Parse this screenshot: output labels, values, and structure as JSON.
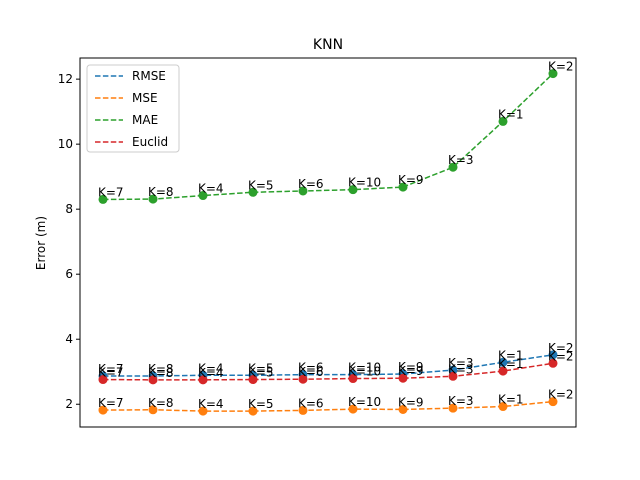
{
  "chart_data": {
    "type": "line",
    "title": "KNN",
    "xlabel": "",
    "ylabel": "Error (m)",
    "ylim": [
      1.3,
      12.65
    ],
    "yticks": [
      2,
      4,
      6,
      8,
      10,
      12
    ],
    "x_ticks_visible": false,
    "grid": false,
    "legend_position": "top-left",
    "point_labels": [
      "K=7",
      "K=8",
      "K=4",
      "K=5",
      "K=6",
      "K=10",
      "K=9",
      "K=3",
      "K=1",
      "K=2"
    ],
    "series": [
      {
        "name": "RMSE",
        "color": "#1f77b4",
        "values": [
          2.87,
          2.87,
          2.89,
          2.89,
          2.91,
          2.91,
          2.93,
          3.05,
          3.29,
          3.52
        ]
      },
      {
        "name": "MSE",
        "color": "#ff7f0e",
        "values": [
          1.82,
          1.83,
          1.79,
          1.79,
          1.81,
          1.85,
          1.84,
          1.88,
          1.93,
          2.08
        ]
      },
      {
        "name": "MAE",
        "color": "#2ca02c",
        "values": [
          8.3,
          8.31,
          8.42,
          8.52,
          8.56,
          8.6,
          8.68,
          9.29,
          10.7,
          12.17
        ]
      },
      {
        "name": "Euclid",
        "color": "#d62728",
        "values": [
          2.76,
          2.75,
          2.75,
          2.76,
          2.77,
          2.79,
          2.8,
          2.86,
          3.02,
          3.26
        ]
      }
    ]
  }
}
